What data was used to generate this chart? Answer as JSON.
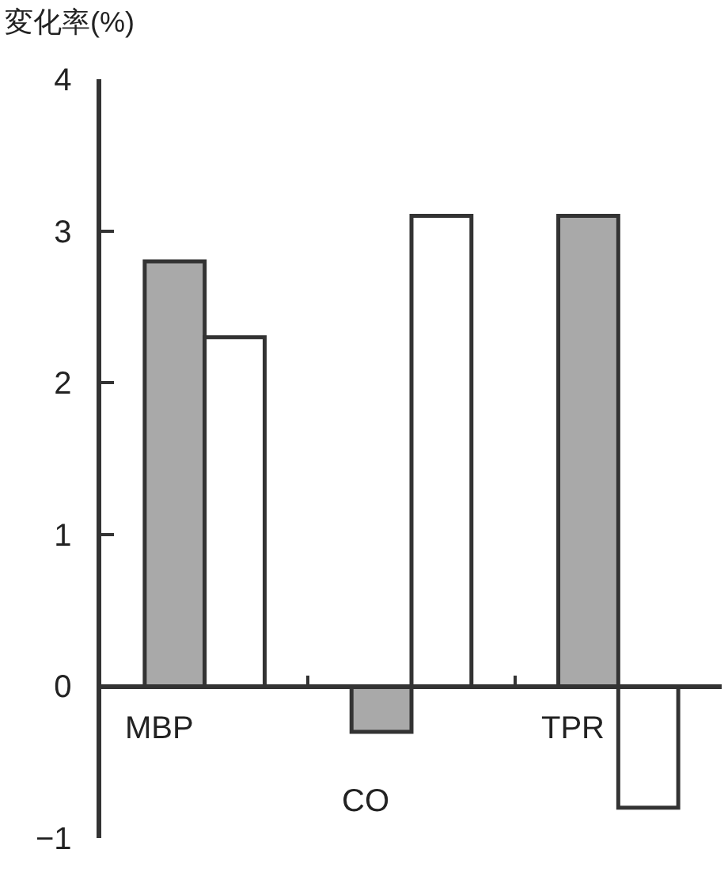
{
  "chart_data": {
    "type": "bar",
    "ylabel": "変化率(%)",
    "categories": [
      "MBP",
      "CO",
      "TPR"
    ],
    "series": [
      {
        "color": "#a9a9a9",
        "values": [
          2.8,
          -0.3,
          3.1
        ]
      },
      {
        "color": "#ffffff",
        "values": [
          2.3,
          3.1,
          -0.8
        ]
      }
    ],
    "ylim": [
      -1,
      4
    ],
    "yticks": [
      -1,
      0,
      1,
      2,
      3,
      4
    ]
  }
}
